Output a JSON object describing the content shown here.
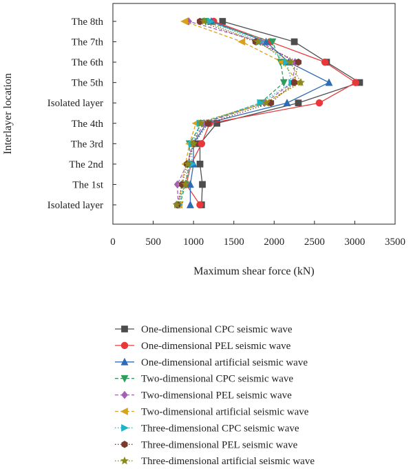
{
  "chart_data": {
    "type": "line",
    "title": "",
    "xlabel": "Maximum shear force (kN)",
    "ylabel": "Interlayer location",
    "xlim": [
      0,
      3500
    ],
    "x_ticks": [
      "0",
      "500",
      "1000",
      "1500",
      "2000",
      "2500",
      "3000",
      "3500"
    ],
    "x_tick_values": [
      0,
      500,
      1000,
      1500,
      2000,
      2500,
      3000,
      3500
    ],
    "categories": [
      "Isolated layer",
      "The 1st",
      "The 2nd",
      "The 3rd",
      "The 4th",
      "Isolated layer",
      "The 5th",
      "The 6th",
      "The 7th",
      "The 8th"
    ],
    "grid": false,
    "legend_placement": "bottom",
    "series": [
      {
        "name": "One-dimensional CPC seismic wave",
        "color": "#4d4d4d",
        "marker": "square",
        "dash": "solid",
        "values": [
          1100,
          1110,
          1080,
          1080,
          1290,
          2300,
          3060,
          2650,
          2250,
          1360
        ]
      },
      {
        "name": "One-dimensional PEL seismic wave",
        "color": "#e8383b",
        "marker": "circle",
        "dash": "solid",
        "values": [
          1080,
          910,
          970,
          1100,
          1200,
          2560,
          3010,
          2630,
          1950,
          1250
        ]
      },
      {
        "name": "One-dimensional artificial seismic wave",
        "color": "#2e6bb5",
        "marker": "triangle-up",
        "dash": "solid",
        "values": [
          960,
          960,
          1000,
          1000,
          1160,
          2160,
          2680,
          2180,
          1900,
          1220
        ]
      },
      {
        "name": "Two-dimensional CPC seismic wave",
        "color": "#2e9d5b",
        "marker": "triangle-down",
        "dash": "dashed",
        "values": [
          830,
          900,
          950,
          950,
          1100,
          1830,
          2120,
          2080,
          1980,
          1150
        ]
      },
      {
        "name": "Two-dimensional PEL seismic wave",
        "color": "#a55fb5",
        "marker": "diamond",
        "dash": "dashed",
        "values": [
          810,
          800,
          920,
          990,
          1130,
          1880,
          2230,
          2260,
          1830,
          940
        ]
      },
      {
        "name": "Two-dimensional artificial seismic wave",
        "color": "#d9a21b",
        "marker": "triangle-left",
        "dash": "dashed",
        "values": [
          820,
          850,
          900,
          950,
          1030,
          1900,
          2300,
          2100,
          1600,
          890
        ]
      },
      {
        "name": "Three-dimensional CPC seismic wave",
        "color": "#1fb3c8",
        "marker": "triangle-right",
        "dash": "dotted",
        "values": [
          820,
          880,
          980,
          980,
          1080,
          1830,
          2220,
          2150,
          1820,
          1210
        ]
      },
      {
        "name": "Three-dimensional PEL seismic wave",
        "color": "#7a3a2e",
        "marker": "hexagon",
        "dash": "dotted",
        "values": [
          800,
          860,
          920,
          1010,
          1180,
          1960,
          2250,
          2300,
          1770,
          1080
        ]
      },
      {
        "name": "Three-dimensional artificial seismic wave",
        "color": "#8a8a1f",
        "marker": "star",
        "dash": "dotted",
        "values": [
          790,
          900,
          930,
          1000,
          1090,
          1900,
          2330,
          2200,
          1800,
          1130
        ]
      }
    ]
  }
}
